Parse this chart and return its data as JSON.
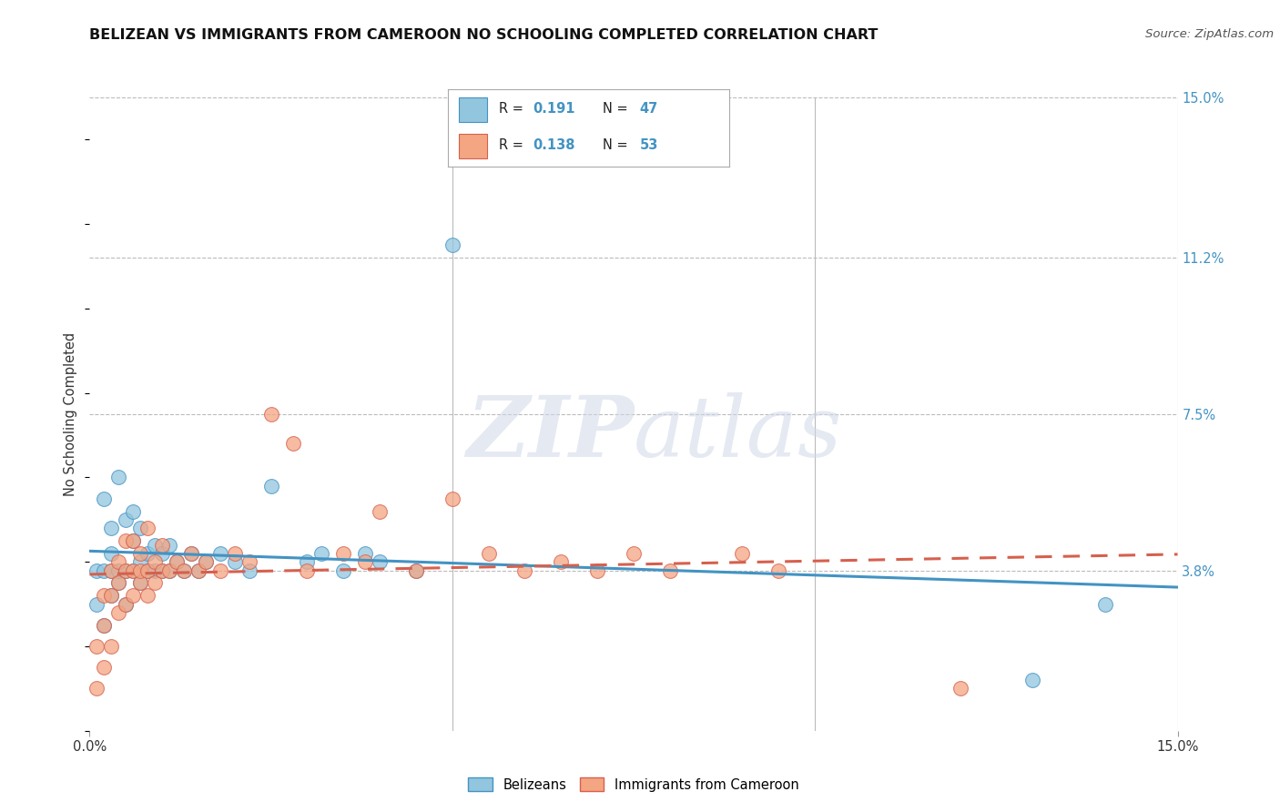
{
  "title": "BELIZEAN VS IMMIGRANTS FROM CAMEROON NO SCHOOLING COMPLETED CORRELATION CHART",
  "source": "Source: ZipAtlas.com",
  "ylabel": "No Schooling Completed",
  "xlim": [
    0.0,
    0.15
  ],
  "ylim": [
    0.0,
    0.15
  ],
  "ytick_labels": [
    "3.8%",
    "7.5%",
    "11.2%",
    "15.0%"
  ],
  "ytick_values": [
    0.038,
    0.075,
    0.112,
    0.15
  ],
  "blue_color": "#92c5de",
  "blue_edge_color": "#4393c3",
  "blue_line_color": "#4393c3",
  "pink_color": "#f4a582",
  "pink_edge_color": "#d6604d",
  "pink_line_color": "#d6604d",
  "blue_r": "0.191",
  "blue_n": "47",
  "pink_r": "0.138",
  "pink_n": "53",
  "blue_scatter_x": [
    0.001,
    0.001,
    0.002,
    0.002,
    0.002,
    0.003,
    0.003,
    0.003,
    0.003,
    0.004,
    0.004,
    0.004,
    0.005,
    0.005,
    0.005,
    0.006,
    0.006,
    0.006,
    0.007,
    0.007,
    0.007,
    0.008,
    0.008,
    0.009,
    0.009,
    0.01,
    0.01,
    0.011,
    0.011,
    0.012,
    0.013,
    0.014,
    0.015,
    0.016,
    0.018,
    0.02,
    0.022,
    0.025,
    0.03,
    0.032,
    0.035,
    0.038,
    0.04,
    0.045,
    0.05,
    0.13,
    0.14
  ],
  "blue_scatter_y": [
    0.03,
    0.038,
    0.025,
    0.038,
    0.055,
    0.032,
    0.038,
    0.042,
    0.048,
    0.035,
    0.038,
    0.06,
    0.03,
    0.038,
    0.05,
    0.038,
    0.045,
    0.052,
    0.035,
    0.04,
    0.048,
    0.038,
    0.042,
    0.038,
    0.044,
    0.038,
    0.042,
    0.038,
    0.044,
    0.04,
    0.038,
    0.042,
    0.038,
    0.04,
    0.042,
    0.04,
    0.038,
    0.058,
    0.04,
    0.042,
    0.038,
    0.042,
    0.04,
    0.038,
    0.115,
    0.012,
    0.03
  ],
  "pink_scatter_x": [
    0.001,
    0.001,
    0.002,
    0.002,
    0.002,
    0.003,
    0.003,
    0.003,
    0.004,
    0.004,
    0.004,
    0.005,
    0.005,
    0.005,
    0.006,
    0.006,
    0.006,
    0.007,
    0.007,
    0.007,
    0.008,
    0.008,
    0.008,
    0.009,
    0.009,
    0.01,
    0.01,
    0.011,
    0.012,
    0.013,
    0.014,
    0.015,
    0.016,
    0.018,
    0.02,
    0.022,
    0.025,
    0.028,
    0.03,
    0.035,
    0.038,
    0.04,
    0.045,
    0.05,
    0.055,
    0.06,
    0.065,
    0.07,
    0.075,
    0.08,
    0.09,
    0.095,
    0.12
  ],
  "pink_scatter_y": [
    0.01,
    0.02,
    0.015,
    0.025,
    0.032,
    0.02,
    0.032,
    0.038,
    0.028,
    0.035,
    0.04,
    0.03,
    0.038,
    0.045,
    0.032,
    0.038,
    0.045,
    0.035,
    0.038,
    0.042,
    0.032,
    0.038,
    0.048,
    0.035,
    0.04,
    0.038,
    0.044,
    0.038,
    0.04,
    0.038,
    0.042,
    0.038,
    0.04,
    0.038,
    0.042,
    0.04,
    0.075,
    0.068,
    0.038,
    0.042,
    0.04,
    0.052,
    0.038,
    0.055,
    0.042,
    0.038,
    0.04,
    0.038,
    0.042,
    0.038,
    0.042,
    0.038,
    0.01
  ]
}
